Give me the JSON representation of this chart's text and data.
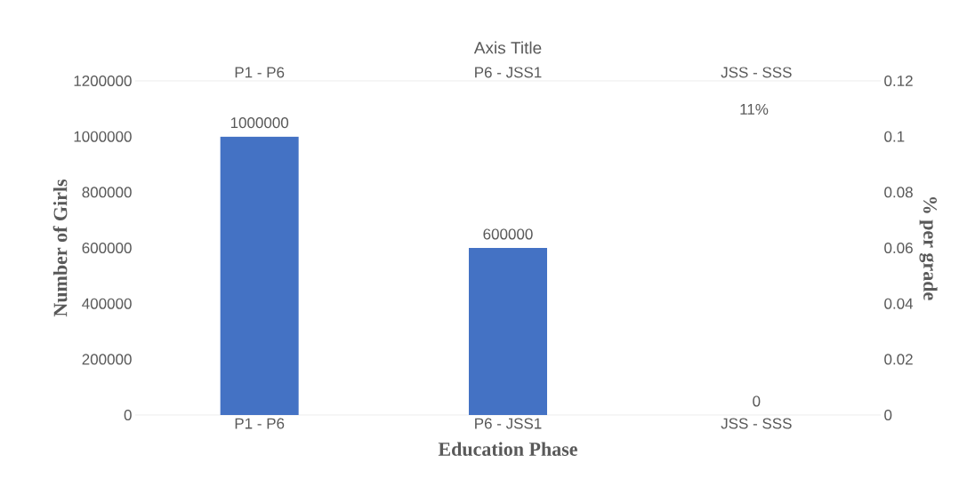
{
  "chart_data": {
    "type": "bar",
    "xlabel": "Education Phase",
    "ylabel": "Number of Girls",
    "x2label": "Axis Title",
    "y2label": "% per grade",
    "categories": [
      "P1 - P6",
      "P6 - JSS1",
      "JSS - SSS"
    ],
    "series": [
      {
        "color": "#4472c4",
        "values": [
          1000000,
          600000,
          0
        ]
      }
    ],
    "ylim": [
      0,
      1200000
    ],
    "yticks": [
      0,
      200000,
      400000,
      600000,
      800000,
      1000000,
      1200000
    ],
    "y2lim": [
      0,
      0.12
    ],
    "y2ticks": [
      0,
      0.02,
      0.04,
      0.06,
      0.08,
      0.1,
      0.12
    ],
    "data_labels": true,
    "grid": false,
    "annotations": [
      "11%"
    ]
  }
}
